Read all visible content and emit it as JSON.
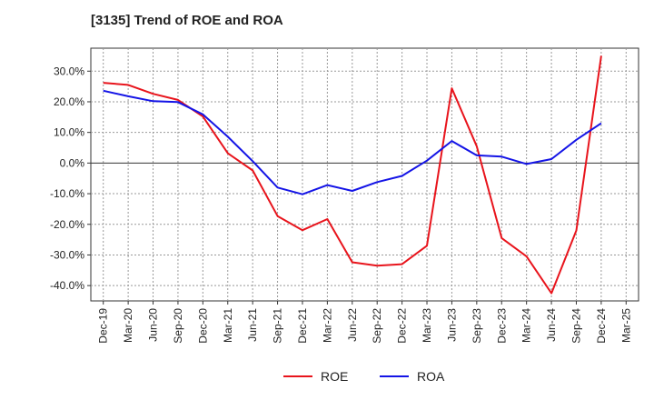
{
  "chart_data": {
    "type": "line",
    "title": "[3135]  Trend of ROE and ROA",
    "xlabel": "",
    "ylabel": "",
    "x": [
      "Dec-19",
      "Mar-20",
      "Jun-20",
      "Sep-20",
      "Dec-20",
      "Mar-21",
      "Jun-21",
      "Sep-21",
      "Dec-21",
      "Mar-22",
      "Jun-22",
      "Sep-22",
      "Dec-22",
      "Mar-23",
      "Jun-23",
      "Sep-23",
      "Dec-23",
      "Mar-24",
      "Jun-24",
      "Sep-24",
      "Dec-24",
      "Mar-25"
    ],
    "y_ticks": [
      "30.0%",
      "20.0%",
      "10.0%",
      "0.0%",
      "-10.0%",
      "-20.0%",
      "-30.0%",
      "-40.0%"
    ],
    "y_tick_values": [
      30,
      20,
      10,
      0,
      -10,
      -20,
      -30,
      -40
    ],
    "ylim": [
      -45,
      37.5
    ],
    "grid": true,
    "legend_position": "bottom-center",
    "series": [
      {
        "name": "ROE",
        "color": "#e8141c",
        "values": [
          26.2,
          25.5,
          22.6,
          20.6,
          15.2,
          3.2,
          -2.4,
          -17.3,
          -21.9,
          -18.3,
          -32.4,
          -33.5,
          -33.0,
          -27.0,
          24.4,
          5.5,
          -24.5,
          -30.5,
          -42.5,
          -22.0,
          35.0,
          null
        ]
      },
      {
        "name": "ROA",
        "color": "#1414e6",
        "values": [
          23.6,
          21.8,
          20.2,
          19.9,
          15.9,
          8.6,
          0.6,
          -8.0,
          -10.2,
          -7.2,
          -9.1,
          -6.2,
          -4.2,
          0.8,
          7.2,
          2.5,
          2.1,
          -0.3,
          1.3,
          7.6,
          13.0,
          null
        ]
      }
    ]
  }
}
